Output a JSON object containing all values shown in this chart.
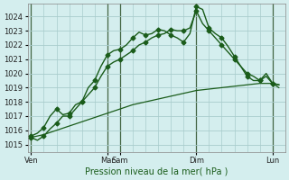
{
  "background_color": "#d4eeee",
  "grid_color": "#a8cccc",
  "line_color": "#1a5c1a",
  "yticks": [
    1015,
    1016,
    1017,
    1018,
    1019,
    1020,
    1021,
    1022,
    1023,
    1024
  ],
  "xlabel": "Pression niveau de la mer( hPa )",
  "xlabel_color": "#1a5c1a",
  "xtick_labels": [
    "Ven",
    "Mar",
    "Sam",
    "Dim",
    "Lun"
  ],
  "xtick_positions": [
    0,
    12,
    14,
    26,
    38
  ],
  "vlines": [
    12,
    14,
    26,
    38
  ],
  "series1": {
    "x": [
      0,
      1,
      2,
      3,
      4,
      5,
      6,
      7,
      8,
      9,
      10,
      11,
      12,
      13,
      14,
      15,
      16,
      17,
      18,
      19,
      20,
      21,
      22,
      23,
      24,
      25,
      26,
      27,
      28,
      29,
      30,
      31,
      32,
      33,
      34,
      35,
      36,
      37,
      38,
      39
    ],
    "y": [
      1015.5,
      1015.3,
      1015.6,
      1016.1,
      1016.5,
      1017.0,
      1017.0,
      1017.5,
      1018.0,
      1019.0,
      1019.5,
      1020.5,
      1021.3,
      1021.6,
      1021.7,
      1022.0,
      1022.5,
      1022.9,
      1022.7,
      1022.8,
      1023.1,
      1023.0,
      1022.7,
      1022.5,
      1022.2,
      1022.8,
      1024.7,
      1024.5,
      1023.2,
      1022.8,
      1022.5,
      1021.9,
      1021.2,
      1020.5,
      1019.8,
      1019.5,
      1019.5,
      1019.8,
      1019.3,
      1019.2
    ],
    "marker": "D",
    "markersize": 2.5,
    "linewidth": 1.0,
    "markevery": 2
  },
  "series2": {
    "x": [
      0,
      2,
      4,
      6,
      8,
      10,
      12,
      14,
      16,
      18,
      20,
      22,
      24,
      26,
      28,
      30,
      32,
      34,
      36,
      38,
      39
    ],
    "y": [
      1015.5,
      1015.7,
      1016.0,
      1016.3,
      1016.6,
      1016.9,
      1017.2,
      1017.5,
      1017.8,
      1018.0,
      1018.2,
      1018.4,
      1018.6,
      1018.8,
      1018.9,
      1019.0,
      1019.1,
      1019.2,
      1019.3,
      1019.3,
      1019.0
    ],
    "marker": null,
    "linewidth": 0.9
  },
  "series3": {
    "x": [
      0,
      1,
      2,
      3,
      4,
      5,
      6,
      7,
      8,
      9,
      10,
      11,
      12,
      13,
      14,
      15,
      16,
      17,
      18,
      19,
      20,
      21,
      22,
      23,
      24,
      25,
      26,
      27,
      28,
      29,
      30,
      31,
      32,
      33,
      34,
      35,
      36,
      37,
      38,
      39
    ],
    "y": [
      1015.6,
      1015.8,
      1016.2,
      1017.0,
      1017.5,
      1017.1,
      1017.2,
      1017.8,
      1018.0,
      1018.5,
      1019.0,
      1019.8,
      1020.5,
      1020.8,
      1021.0,
      1021.3,
      1021.6,
      1022.0,
      1022.2,
      1022.5,
      1022.7,
      1022.8,
      1023.1,
      1023.0,
      1023.0,
      1023.2,
      1024.4,
      1023.5,
      1023.0,
      1022.5,
      1022.0,
      1021.5,
      1021.0,
      1020.5,
      1020.0,
      1019.8,
      1019.5,
      1020.0,
      1019.3,
      1019.2
    ],
    "marker": "D",
    "markersize": 2.5,
    "linewidth": 1.0,
    "markevery": 2
  },
  "xlim": [
    -0.5,
    40
  ],
  "ylim": [
    1014.5,
    1024.9
  ],
  "tick_fontsize": 6,
  "xlabel_fontsize": 7
}
